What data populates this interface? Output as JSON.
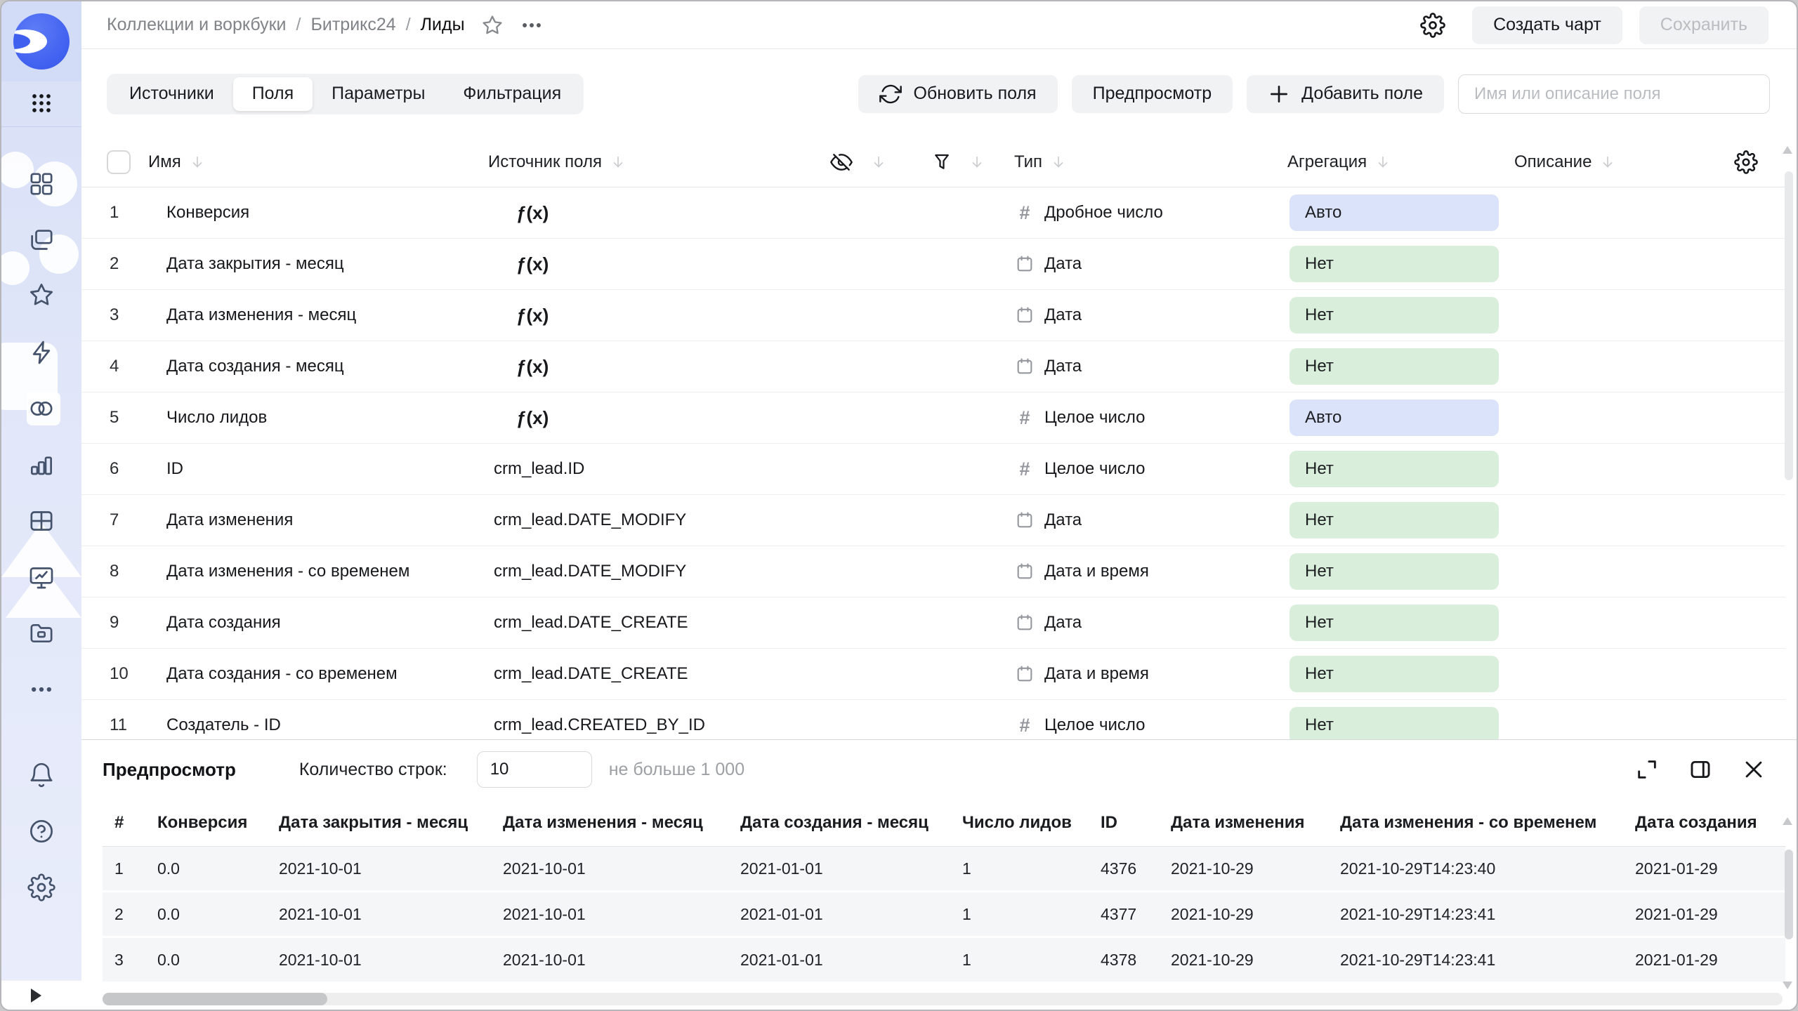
{
  "header": {
    "breadcrumbs": [
      "Коллекции и воркбуки",
      "Битрикс24",
      "Лиды"
    ],
    "breadcrumb_separator": "/",
    "actions": {
      "create_chart": "Создать чарт",
      "save": "Сохранить"
    }
  },
  "toolbar": {
    "tabs": [
      {
        "label": "Источники",
        "active": false
      },
      {
        "label": "Поля",
        "active": true
      },
      {
        "label": "Параметры",
        "active": false
      },
      {
        "label": "Фильтрация",
        "active": false
      }
    ],
    "refresh_fields": "Обновить поля",
    "preview_button": "Предпросмотр",
    "add_field": "Добавить поле",
    "search_placeholder": "Имя или описание поля"
  },
  "fields_table": {
    "columns": {
      "name": "Имя",
      "source": "Источник поля",
      "type": "Тип",
      "aggregation": "Агрегация",
      "description": "Описание"
    },
    "rows": [
      {
        "num": "1",
        "name": "Конверсия",
        "source": "ƒ(x)",
        "source_kind": "formula",
        "type": "Дробное число",
        "type_icon": "number",
        "aggregation": "Авто",
        "agg_style": "auto"
      },
      {
        "num": "2",
        "name": "Дата закрытия - месяц",
        "source": "ƒ(x)",
        "source_kind": "formula",
        "type": "Дата",
        "type_icon": "calendar",
        "aggregation": "Нет",
        "agg_style": "none"
      },
      {
        "num": "3",
        "name": "Дата изменения - месяц",
        "source": "ƒ(x)",
        "source_kind": "formula",
        "type": "Дата",
        "type_icon": "calendar",
        "aggregation": "Нет",
        "agg_style": "none"
      },
      {
        "num": "4",
        "name": "Дата создания - месяц",
        "source": "ƒ(x)",
        "source_kind": "formula",
        "type": "Дата",
        "type_icon": "calendar",
        "aggregation": "Нет",
        "agg_style": "none"
      },
      {
        "num": "5",
        "name": "Число лидов",
        "source": "ƒ(x)",
        "source_kind": "formula",
        "type": "Целое число",
        "type_icon": "number",
        "aggregation": "Авто",
        "agg_style": "auto"
      },
      {
        "num": "6",
        "name": "ID",
        "source": "crm_lead.ID",
        "source_kind": "field",
        "type": "Целое число",
        "type_icon": "number",
        "aggregation": "Нет",
        "agg_style": "none"
      },
      {
        "num": "7",
        "name": "Дата изменения",
        "source": "crm_lead.DATE_MODIFY",
        "source_kind": "field",
        "type": "Дата",
        "type_icon": "calendar",
        "aggregation": "Нет",
        "agg_style": "none"
      },
      {
        "num": "8",
        "name": "Дата изменения - со временем",
        "source": "crm_lead.DATE_MODIFY",
        "source_kind": "field",
        "type": "Дата и время",
        "type_icon": "calendar",
        "aggregation": "Нет",
        "agg_style": "none"
      },
      {
        "num": "9",
        "name": "Дата создания",
        "source": "crm_lead.DATE_CREATE",
        "source_kind": "field",
        "type": "Дата",
        "type_icon": "calendar",
        "aggregation": "Нет",
        "agg_style": "none"
      },
      {
        "num": "10",
        "name": "Дата создания - со временем",
        "source": "crm_lead.DATE_CREATE",
        "source_kind": "field",
        "type": "Дата и время",
        "type_icon": "calendar",
        "aggregation": "Нет",
        "agg_style": "none"
      },
      {
        "num": "11",
        "name": "Создатель - ID",
        "source": "crm_lead.CREATED_BY_ID",
        "source_kind": "field",
        "type": "Целое число",
        "type_icon": "number",
        "aggregation": "Нет",
        "agg_style": "none"
      }
    ]
  },
  "preview": {
    "title": "Предпросмотр",
    "rows_label": "Количество строк:",
    "rows_value": "10",
    "rows_hint": "не больше 1 000",
    "table": {
      "headers": [
        "#",
        "Конверсия",
        "Дата закрытия - месяц",
        "Дата изменения - месяц",
        "Дата создания - месяц",
        "Число лидов",
        "ID",
        "Дата изменения",
        "Дата изменения - со временем",
        "Дата создания"
      ],
      "rows": [
        [
          "1",
          "0.0",
          "2021-10-01",
          "2021-10-01",
          "2021-01-01",
          "1",
          "4376",
          "2021-10-29",
          "2021-10-29T14:23:40",
          "2021-01-29"
        ],
        [
          "2",
          "0.0",
          "2021-10-01",
          "2021-10-01",
          "2021-01-01",
          "1",
          "4377",
          "2021-10-29",
          "2021-10-29T14:23:41",
          "2021-01-29"
        ],
        [
          "3",
          "0.0",
          "2021-10-01",
          "2021-10-01",
          "2021-01-01",
          "1",
          "4378",
          "2021-10-29",
          "2021-10-29T14:23:41",
          "2021-01-29"
        ]
      ]
    }
  },
  "sidebar": {
    "icons": [
      "datalens-logo",
      "apps-grid-icon",
      "dashboards-icon",
      "collections-icon",
      "favorites-icon",
      "lightning-icon",
      "connections-icon",
      "chart-icon",
      "table-icon",
      "monitor-icon",
      "folder-icon",
      "more-icon",
      "bell-icon",
      "help-icon",
      "settings-icon",
      "collapse-icon"
    ]
  },
  "colors": {
    "badge_auto_blue": "#dbe3fa",
    "badge_none_green": "#d9efdb",
    "logo_blue": "#4060f0",
    "sidebar_icon": "#44526b",
    "button_gray": "#f1f2f4"
  }
}
